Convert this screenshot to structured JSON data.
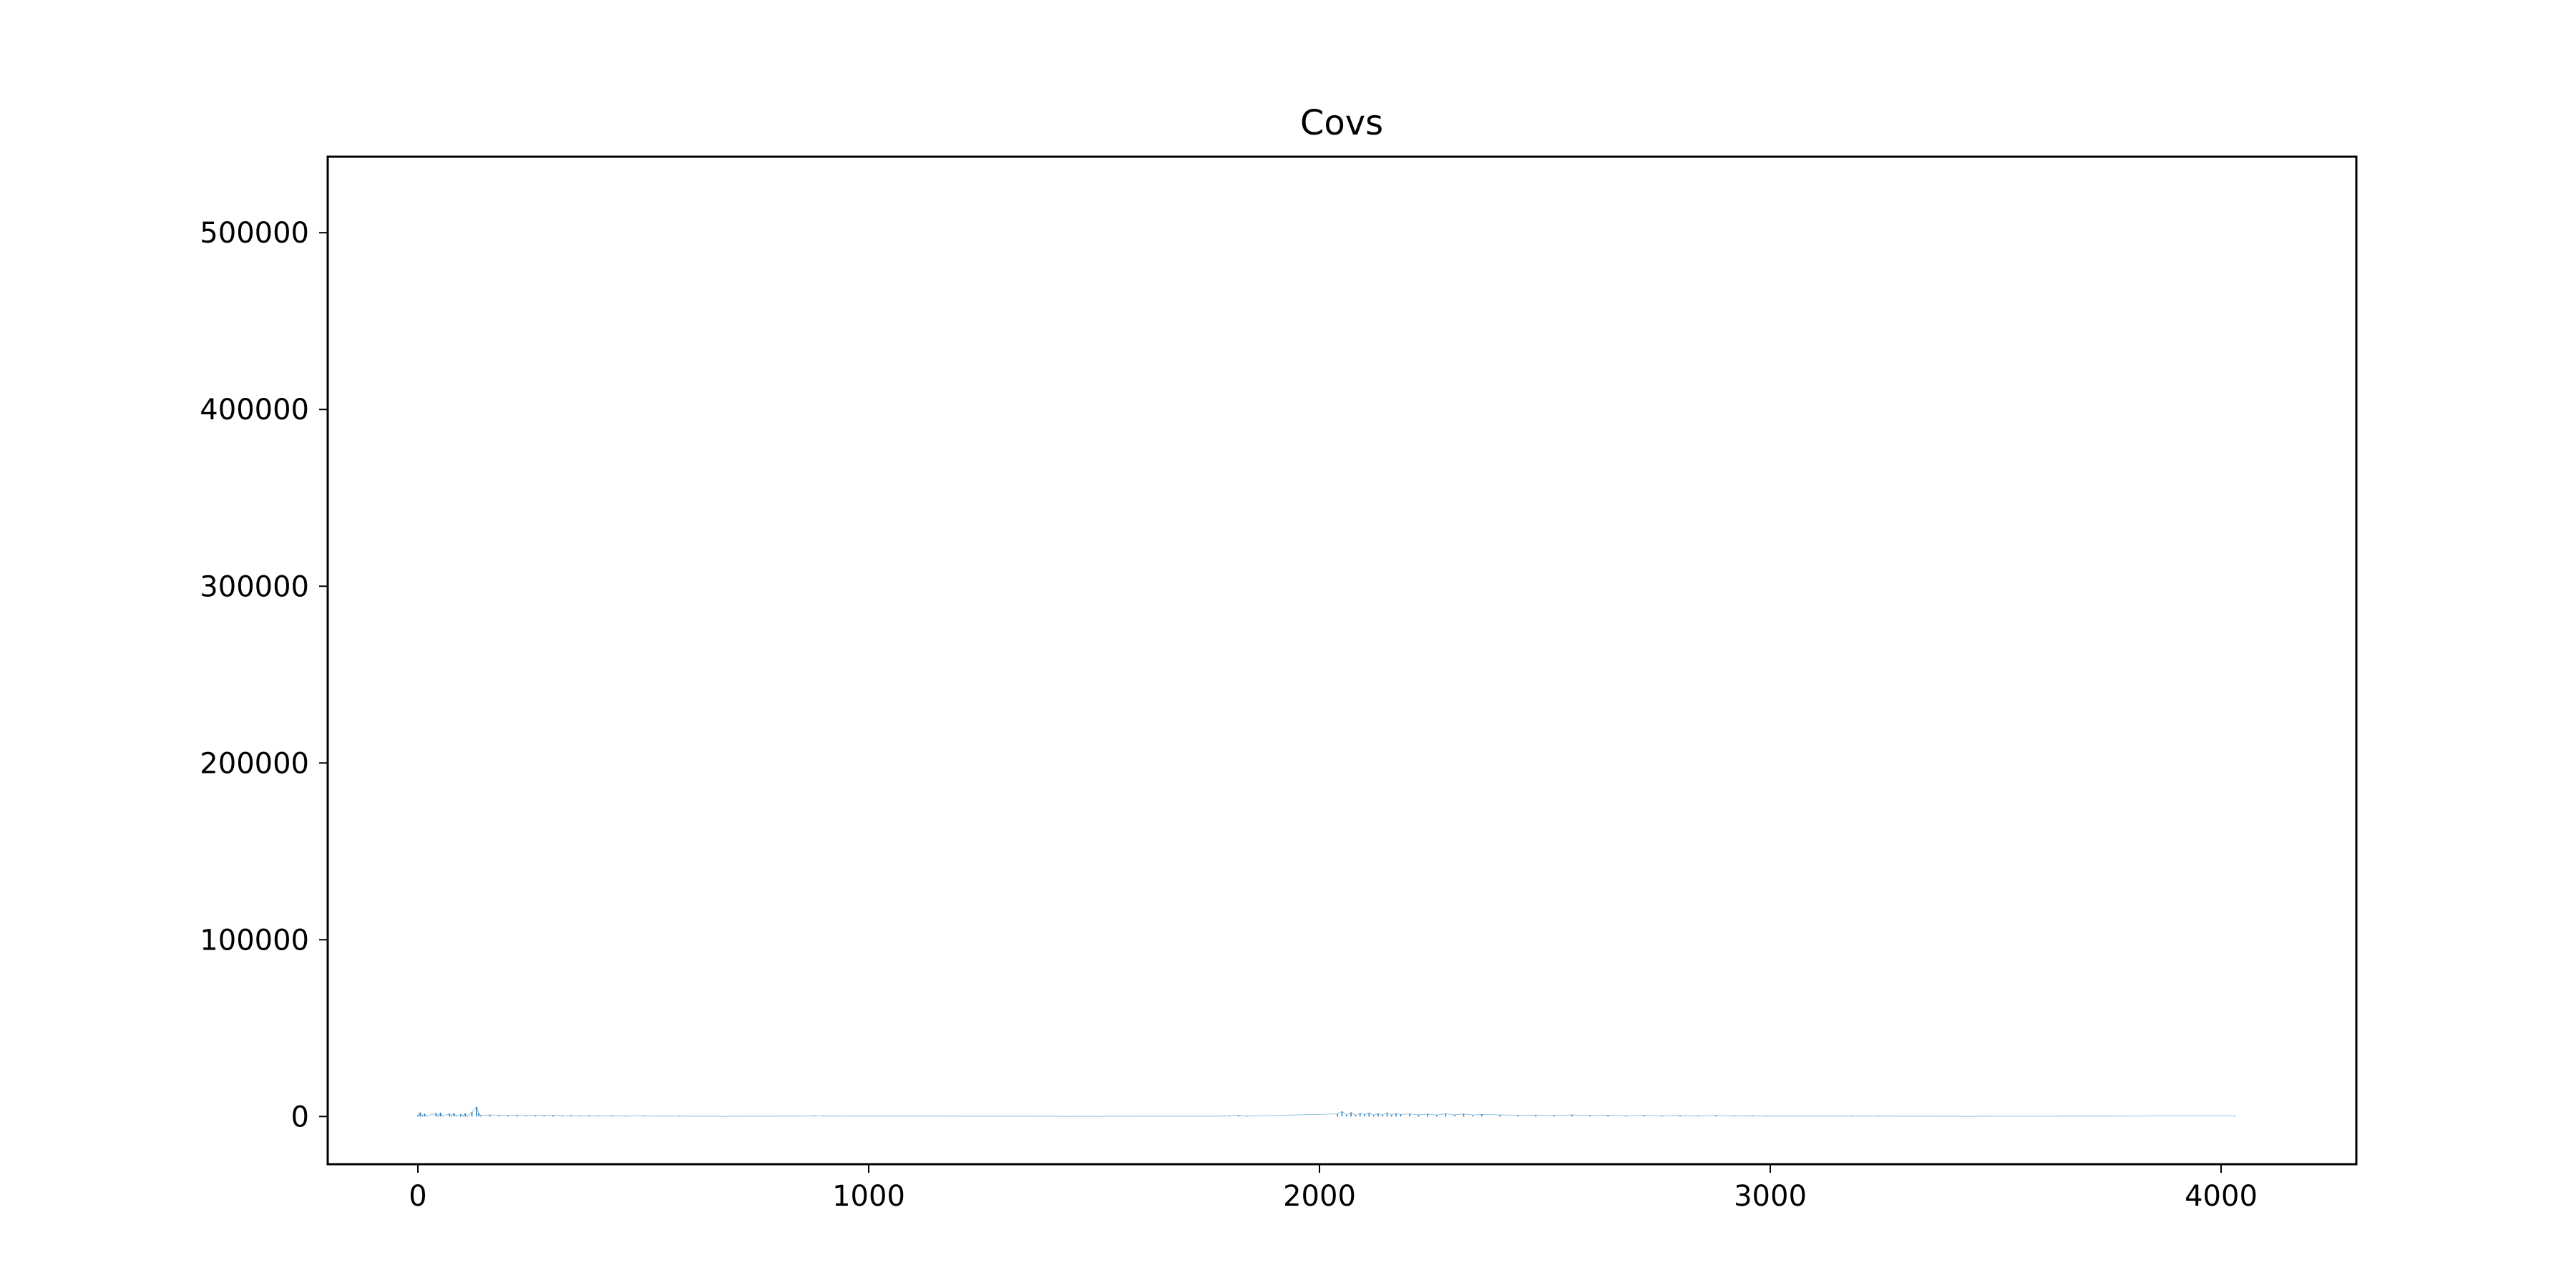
{
  "chart_data": {
    "type": "line",
    "title": "Covs",
    "xlabel": "",
    "ylabel": "",
    "xlim": [
      -200,
      4300
    ],
    "ylim": [
      -27000,
      543000
    ],
    "xticks": [
      0,
      1000,
      2000,
      3000,
      4000
    ],
    "yticks": [
      0,
      100000,
      200000,
      300000,
      400000,
      500000
    ],
    "xtick_labels": [
      "0",
      "1000",
      "2000",
      "3000",
      "4000"
    ],
    "ytick_labels": [
      "0",
      "100000",
      "200000",
      "300000",
      "400000",
      "500000"
    ],
    "grid": false,
    "series": [
      {
        "color": "#1f77b4",
        "points": [
          [
            0,
            800
          ],
          [
            5,
            2200
          ],
          [
            10,
            600
          ],
          [
            15,
            1500
          ],
          [
            20,
            300
          ],
          [
            40,
            1800
          ],
          [
            45,
            500
          ],
          [
            50,
            2100
          ],
          [
            55,
            200
          ],
          [
            70,
            1600
          ],
          [
            75,
            400
          ],
          [
            80,
            1900
          ],
          [
            85,
            300
          ],
          [
            95,
            1200
          ],
          [
            100,
            300
          ],
          [
            105,
            1700
          ],
          [
            110,
            200
          ],
          [
            120,
            2500
          ],
          [
            130,
            5500
          ],
          [
            135,
            1800
          ],
          [
            140,
            600
          ],
          [
            160,
            900
          ],
          [
            180,
            700
          ],
          [
            200,
            500
          ],
          [
            220,
            800
          ],
          [
            240,
            400
          ],
          [
            260,
            600
          ],
          [
            280,
            500
          ],
          [
            300,
            700
          ],
          [
            320,
            400
          ],
          [
            340,
            500
          ],
          [
            360,
            300
          ],
          [
            380,
            500
          ],
          [
            400,
            300
          ],
          [
            430,
            400
          ],
          [
            460,
            200
          ],
          [
            500,
            300
          ],
          [
            540,
            200
          ],
          [
            580,
            200
          ],
          [
            620,
            150
          ],
          [
            660,
            150
          ],
          [
            680,
            100
          ],
          [
            830,
            200
          ],
          [
            880,
            300
          ],
          [
            900,
            250
          ],
          [
            1440,
            100
          ],
          [
            1760,
            150
          ],
          [
            1800,
            300
          ],
          [
            1820,
            600
          ],
          [
            1840,
            200
          ],
          [
            2040,
            1500
          ],
          [
            2050,
            2800
          ],
          [
            2060,
            900
          ],
          [
            2070,
            2200
          ],
          [
            2080,
            700
          ],
          [
            2090,
            1800
          ],
          [
            2100,
            1200
          ],
          [
            2110,
            2000
          ],
          [
            2120,
            800
          ],
          [
            2130,
            1600
          ],
          [
            2140,
            900
          ],
          [
            2150,
            2100
          ],
          [
            2160,
            1000
          ],
          [
            2170,
            1700
          ],
          [
            2180,
            1200
          ],
          [
            2200,
            1500
          ],
          [
            2220,
            900
          ],
          [
            2240,
            1400
          ],
          [
            2260,
            800
          ],
          [
            2280,
            1600
          ],
          [
            2300,
            900
          ],
          [
            2320,
            1500
          ],
          [
            2340,
            800
          ],
          [
            2360,
            1200
          ],
          [
            2400,
            900
          ],
          [
            2440,
            700
          ],
          [
            2480,
            800
          ],
          [
            2520,
            600
          ],
          [
            2560,
            900
          ],
          [
            2600,
            500
          ],
          [
            2640,
            700
          ],
          [
            2680,
            400
          ],
          [
            2720,
            600
          ],
          [
            2760,
            400
          ],
          [
            2800,
            500
          ],
          [
            2840,
            300
          ],
          [
            2880,
            500
          ],
          [
            2920,
            300
          ],
          [
            2960,
            400
          ],
          [
            2990,
            200
          ],
          [
            3180,
            200
          ],
          [
            3240,
            250
          ],
          [
            3300,
            150
          ],
          [
            3440,
            100
          ],
          [
            4030,
            300
          ]
        ]
      }
    ]
  }
}
